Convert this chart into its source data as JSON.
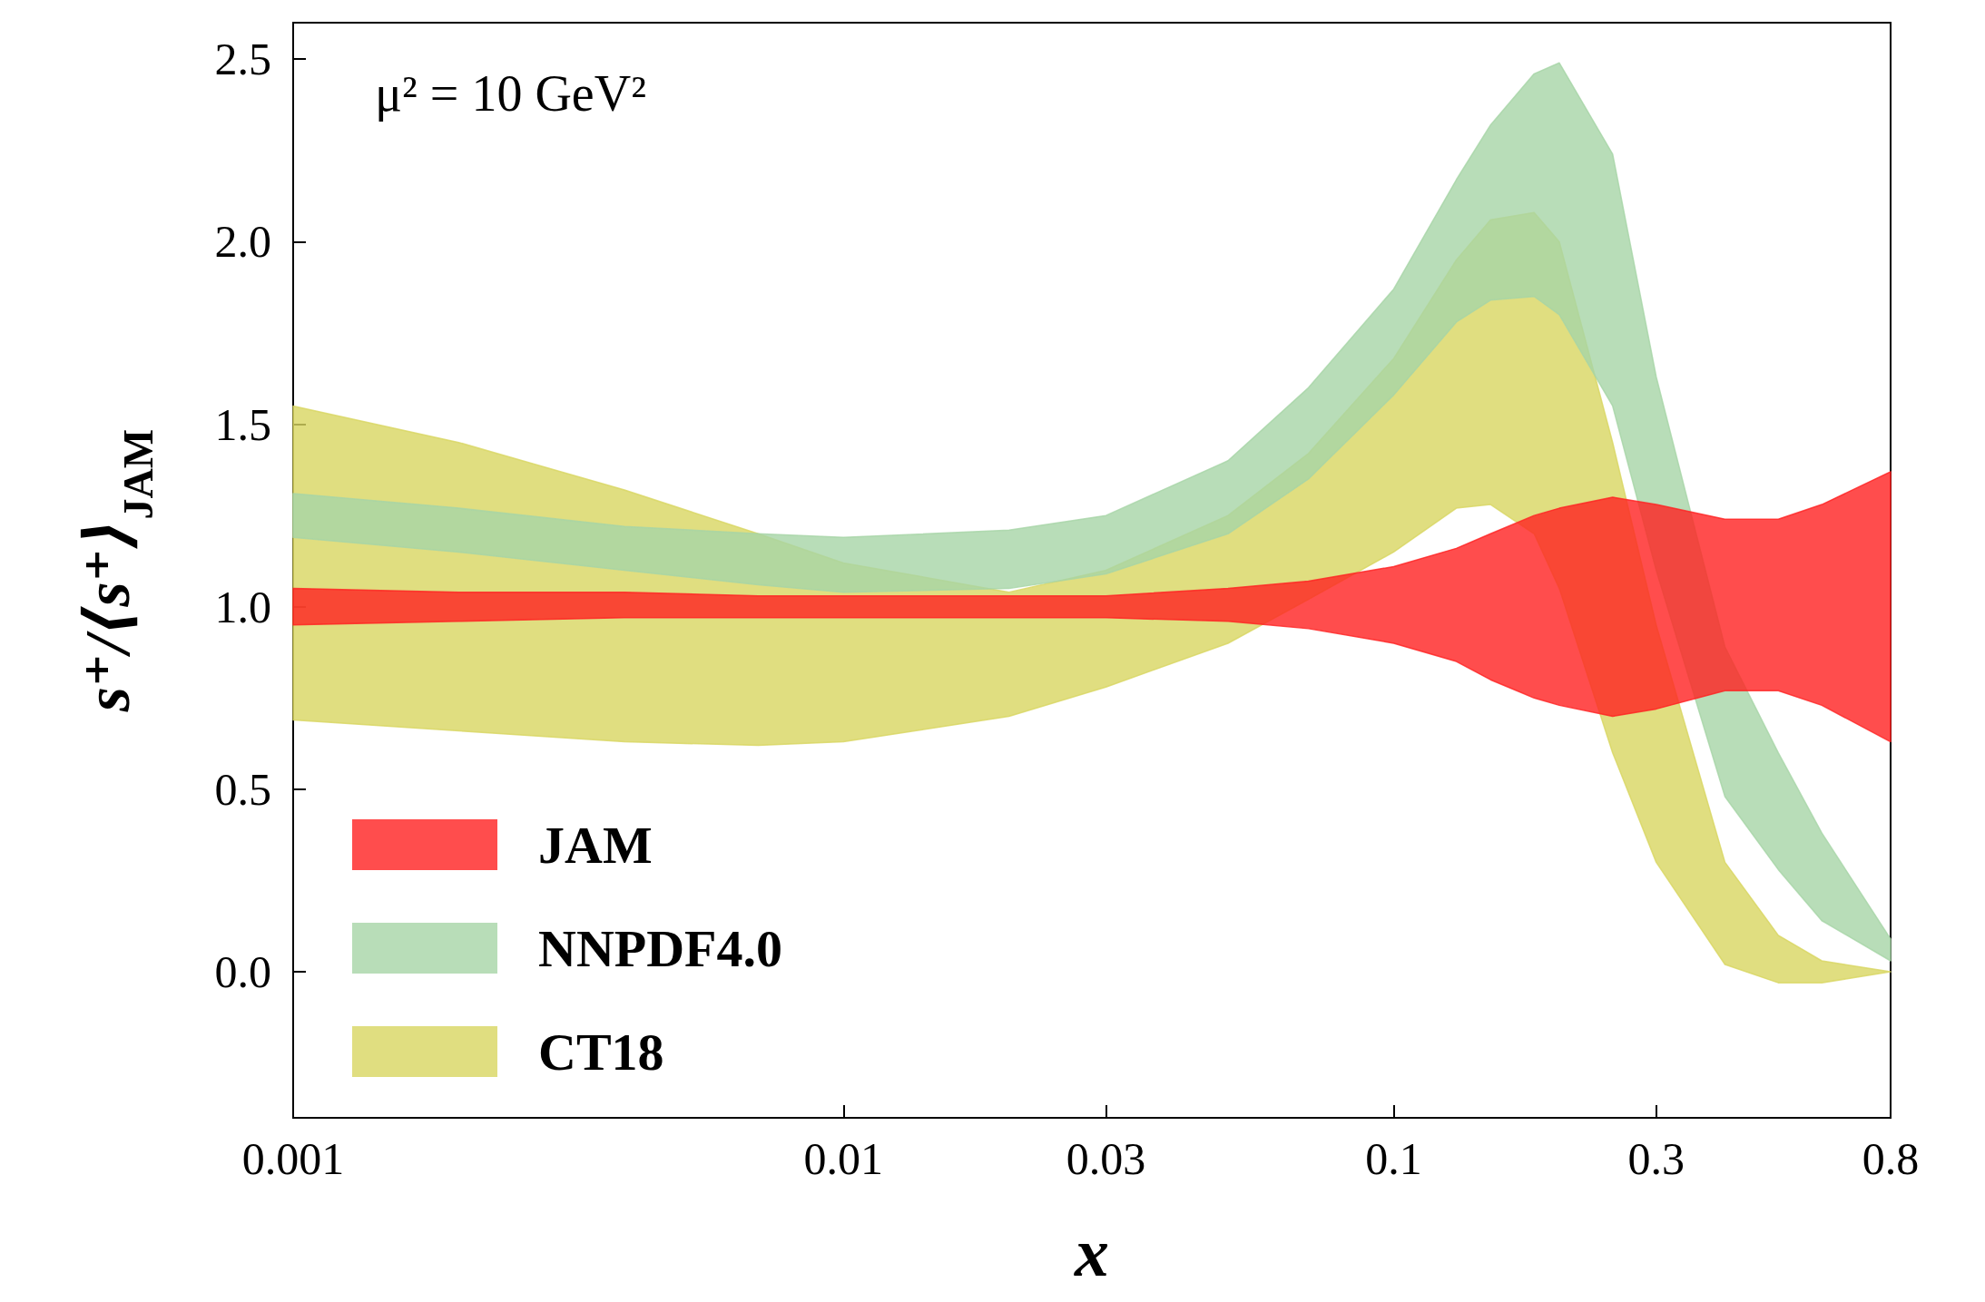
{
  "chart_data": {
    "type": "area",
    "xlabel": "x",
    "ylabel": "s⁺/⟨s⁺⟩$_{JAM}$",
    "annotations": [
      "μ² = 10 GeV²"
    ],
    "x": [
      0.001,
      0.002,
      0.004,
      0.007,
      0.01,
      0.02,
      0.03,
      0.05,
      0.07,
      0.1,
      0.13,
      0.15,
      0.18,
      0.2,
      0.25,
      0.3,
      0.4,
      0.5,
      0.6,
      0.8
    ],
    "series": [
      {
        "name": "JAM",
        "color": "#ff2020",
        "values": [
          null,
          null,
          null,
          null,
          null,
          null,
          null,
          null,
          null,
          null,
          null,
          null,
          null,
          null,
          null,
          null,
          null,
          null,
          null,
          null
        ],
        "upper": [
          1.05,
          1.04,
          1.04,
          1.03,
          1.03,
          1.03,
          1.03,
          1.05,
          1.07,
          1.11,
          1.16,
          1.2,
          1.25,
          1.27,
          1.3,
          1.28,
          1.24,
          1.24,
          1.28,
          1.37
        ],
        "lower": [
          0.95,
          0.96,
          0.97,
          0.97,
          0.97,
          0.97,
          0.97,
          0.96,
          0.94,
          0.9,
          0.85,
          0.8,
          0.75,
          0.73,
          0.7,
          0.72,
          0.77,
          0.77,
          0.73,
          0.63
        ]
      },
      {
        "name": "NNPDF4.0",
        "color": "#a6d4a6",
        "values": [
          null,
          null,
          null,
          null,
          null,
          null,
          null,
          null,
          null,
          null,
          null,
          null,
          null,
          null,
          null,
          null,
          null,
          null,
          null,
          null
        ],
        "upper": [
          1.31,
          1.27,
          1.22,
          1.2,
          1.19,
          1.21,
          1.25,
          1.4,
          1.6,
          1.87,
          2.17,
          2.32,
          2.46,
          2.49,
          2.24,
          1.63,
          0.89,
          0.6,
          0.38,
          0.09
        ],
        "lower": [
          1.19,
          1.15,
          1.1,
          1.06,
          1.04,
          1.05,
          1.09,
          1.2,
          1.35,
          1.58,
          1.78,
          1.84,
          1.85,
          1.8,
          1.55,
          1.1,
          0.48,
          0.28,
          0.14,
          0.03
        ]
      },
      {
        "name": "CT18",
        "color": "#d8d660",
        "values": [
          null,
          null,
          null,
          null,
          null,
          null,
          null,
          null,
          null,
          null,
          null,
          null,
          null,
          null,
          null,
          null,
          null,
          null,
          null,
          null
        ],
        "upper": [
          1.55,
          1.45,
          1.32,
          1.2,
          1.12,
          1.04,
          1.1,
          1.25,
          1.42,
          1.68,
          1.95,
          2.06,
          2.08,
          2.0,
          1.45,
          0.95,
          0.3,
          0.1,
          0.03,
          0.0
        ],
        "lower": [
          0.69,
          0.66,
          0.63,
          0.62,
          0.63,
          0.7,
          0.78,
          0.9,
          1.02,
          1.15,
          1.27,
          1.28,
          1.2,
          1.05,
          0.6,
          0.3,
          0.02,
          -0.03,
          -0.03,
          0.0
        ]
      }
    ],
    "log": "x",
    "xlim": [
      0.001,
      0.8
    ],
    "xticks": [
      0.001,
      0.01,
      0.03,
      0.1,
      0.3,
      0.8
    ],
    "ylim": [
      -0.4,
      2.6
    ],
    "yticks": [
      {
        "value": 0,
        "label": "0.0"
      },
      0.5,
      {
        "value": 1,
        "label": "1.0"
      },
      1.5,
      {
        "value": 2,
        "label": "2.0"
      },
      2.5
    ],
    "legend": "bottom left",
    "grid": false
  }
}
